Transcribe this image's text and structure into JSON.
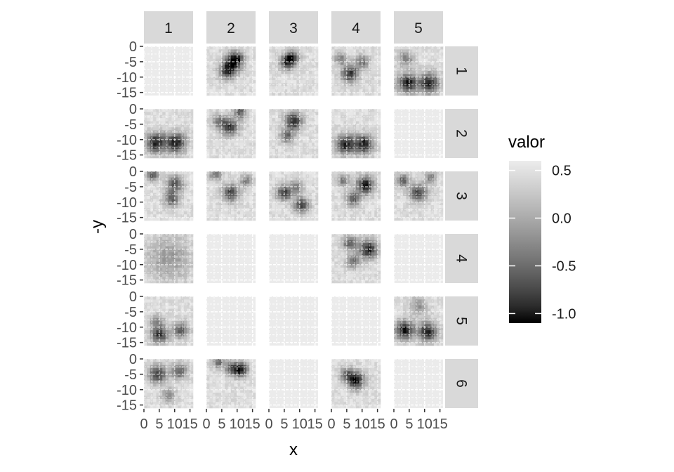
{
  "chart_data": {
    "type": "heatmap",
    "layout": "facet_grid",
    "col_facets": [
      "1",
      "2",
      "3",
      "4",
      "5"
    ],
    "row_facets": [
      "1",
      "2",
      "3",
      "4",
      "5",
      "6"
    ],
    "xlabel": "x",
    "ylabel": "-y",
    "x_ticks": [
      "0",
      "5",
      "10",
      "15"
    ],
    "y_ticks": [
      "0",
      "-5",
      "-10",
      "-15"
    ],
    "xlim": [
      0,
      16
    ],
    "ylim": [
      -16,
      0
    ],
    "grid_size": 16,
    "legend": {
      "title": "valor",
      "labels": [
        "0.5",
        "0.0",
        "-0.5",
        "-1.0"
      ],
      "range": [
        -1.1,
        0.6
      ],
      "placement": "right"
    },
    "panel_background": "#ebebeb",
    "colors": {
      "low": "#000000",
      "high": "#ececec",
      "strip": "#d9d9d9"
    },
    "panels": [
      {
        "row": "1",
        "col": "1",
        "empty": true
      },
      {
        "row": "1",
        "col": "2",
        "empty": false,
        "blobs": [
          {
            "x": 8.5,
            "y": -5.5,
            "v": -0.9,
            "r": 2.2
          },
          {
            "x": 6.5,
            "y": -8.5,
            "v": -0.6,
            "r": 1.8
          },
          {
            "x": 10,
            "y": -3.5,
            "v": -0.4,
            "r": 1.5
          }
        ]
      },
      {
        "row": "1",
        "col": "3",
        "empty": false,
        "blobs": [
          {
            "x": 6,
            "y": -5,
            "v": -0.9,
            "r": 1.8
          },
          {
            "x": 8,
            "y": -3.5,
            "v": -0.5,
            "r": 1.5
          }
        ]
      },
      {
        "row": "1",
        "col": "4",
        "empty": false,
        "blobs": [
          {
            "x": 6,
            "y": -9,
            "v": -0.9,
            "r": 2
          },
          {
            "x": 10,
            "y": -5,
            "v": -0.5,
            "r": 1.6
          },
          {
            "x": 3,
            "y": -4,
            "v": -0.4,
            "r": 1.4
          }
        ]
      },
      {
        "row": "1",
        "col": "5",
        "empty": false,
        "blobs": [
          {
            "x": 4.5,
            "y": -12,
            "v": -1,
            "r": 2.3
          },
          {
            "x": 11.5,
            "y": -12,
            "v": -1,
            "r": 2.3
          },
          {
            "x": 4,
            "y": -4,
            "v": -0.3,
            "r": 1.8
          }
        ]
      },
      {
        "row": "2",
        "col": "1",
        "empty": false,
        "blobs": [
          {
            "x": 4,
            "y": -11,
            "v": -1,
            "r": 2.3
          },
          {
            "x": 10.5,
            "y": -11,
            "v": -1,
            "r": 2.3
          }
        ]
      },
      {
        "row": "2",
        "col": "2",
        "empty": false,
        "blobs": [
          {
            "x": 7.5,
            "y": -6,
            "v": -0.9,
            "r": 2
          },
          {
            "x": 11,
            "y": -1,
            "v": -0.6,
            "r": 1.5
          },
          {
            "x": 4,
            "y": -4,
            "v": -0.3,
            "r": 1.6
          }
        ]
      },
      {
        "row": "2",
        "col": "3",
        "empty": false,
        "blobs": [
          {
            "x": 8,
            "y": -4,
            "v": -1,
            "r": 2
          },
          {
            "x": 6,
            "y": -9,
            "v": -0.5,
            "r": 1.6
          }
        ]
      },
      {
        "row": "2",
        "col": "4",
        "empty": false,
        "blobs": [
          {
            "x": 4.5,
            "y": -11.5,
            "v": -1,
            "r": 2.2
          },
          {
            "x": 10.5,
            "y": -11.5,
            "v": -1,
            "r": 2.2
          }
        ]
      },
      {
        "row": "2",
        "col": "5",
        "empty": true
      },
      {
        "row": "3",
        "col": "1",
        "empty": false,
        "blobs": [
          {
            "x": 10,
            "y": -4,
            "v": -0.8,
            "r": 1.8
          },
          {
            "x": 9,
            "y": -9,
            "v": -0.6,
            "r": 1.8
          },
          {
            "x": 3,
            "y": -1,
            "v": -0.7,
            "r": 1.4
          }
        ]
      },
      {
        "row": "3",
        "col": "2",
        "empty": false,
        "blobs": [
          {
            "x": 8,
            "y": -7,
            "v": -0.8,
            "r": 2
          },
          {
            "x": 3,
            "y": -1,
            "v": -0.5,
            "r": 1.4
          },
          {
            "x": 13,
            "y": -3,
            "v": -0.4,
            "r": 1.3
          }
        ]
      },
      {
        "row": "3",
        "col": "3",
        "empty": false,
        "blobs": [
          {
            "x": 5,
            "y": -7,
            "v": -0.8,
            "r": 1.8
          },
          {
            "x": 10.5,
            "y": -11,
            "v": -0.8,
            "r": 1.8
          },
          {
            "x": 9,
            "y": -5,
            "v": -0.4,
            "r": 1.5
          }
        ]
      },
      {
        "row": "3",
        "col": "4",
        "empty": false,
        "blobs": [
          {
            "x": 11,
            "y": -4.5,
            "v": -1.1,
            "r": 2
          },
          {
            "x": 7,
            "y": -9,
            "v": -0.6,
            "r": 1.7
          },
          {
            "x": 4,
            "y": -3,
            "v": -0.4,
            "r": 1.4
          }
        ]
      },
      {
        "row": "3",
        "col": "5",
        "empty": false,
        "blobs": [
          {
            "x": 8,
            "y": -7,
            "v": -0.8,
            "r": 2
          },
          {
            "x": 3,
            "y": -3,
            "v": -0.6,
            "r": 1.5
          },
          {
            "x": 12,
            "y": -2,
            "v": -0.4,
            "r": 1.4
          }
        ]
      },
      {
        "row": "4",
        "col": "1",
        "empty": false,
        "blobs": [
          {
            "x": 8,
            "y": -8,
            "v": -0.15,
            "r": 5
          }
        ]
      },
      {
        "row": "4",
        "col": "2",
        "empty": true
      },
      {
        "row": "4",
        "col": "3",
        "empty": true
      },
      {
        "row": "4",
        "col": "4",
        "empty": false,
        "blobs": [
          {
            "x": 12,
            "y": -5,
            "v": -1,
            "r": 2.2
          },
          {
            "x": 6,
            "y": -3,
            "v": -0.6,
            "r": 1.7
          },
          {
            "x": 7,
            "y": -9,
            "v": -0.5,
            "r": 1.5
          }
        ]
      },
      {
        "row": "4",
        "col": "5",
        "empty": true
      },
      {
        "row": "5",
        "col": "1",
        "empty": false,
        "blobs": [
          {
            "x": 5,
            "y": -12.5,
            "v": -0.9,
            "r": 2
          },
          {
            "x": 12,
            "y": -11,
            "v": -0.6,
            "r": 1.8
          },
          {
            "x": 4,
            "y": -8,
            "v": -0.3,
            "r": 1.6
          }
        ]
      },
      {
        "row": "5",
        "col": "2",
        "empty": true
      },
      {
        "row": "5",
        "col": "3",
        "empty": true
      },
      {
        "row": "5",
        "col": "4",
        "empty": true
      },
      {
        "row": "5",
        "col": "5",
        "empty": false,
        "blobs": [
          {
            "x": 3.5,
            "y": -11,
            "v": -1,
            "r": 2.2
          },
          {
            "x": 11,
            "y": -11.5,
            "v": -1,
            "r": 2.2
          },
          {
            "x": 8,
            "y": -3,
            "v": -0.2,
            "r": 2
          }
        ]
      },
      {
        "row": "6",
        "col": "1",
        "empty": false,
        "blobs": [
          {
            "x": 4.5,
            "y": -5,
            "v": -0.9,
            "r": 2
          },
          {
            "x": 11.5,
            "y": -4,
            "v": -0.6,
            "r": 1.8
          },
          {
            "x": 8,
            "y": -12,
            "v": -0.3,
            "r": 1.6
          }
        ]
      },
      {
        "row": "6",
        "col": "2",
        "empty": false,
        "blobs": [
          {
            "x": 11,
            "y": -3.5,
            "v": -1.1,
            "r": 1.7
          },
          {
            "x": 8,
            "y": -3,
            "v": -0.4,
            "r": 1.5
          },
          {
            "x": 4,
            "y": -1,
            "v": -0.5,
            "r": 1.4
          }
        ]
      },
      {
        "row": "6",
        "col": "3",
        "empty": true
      },
      {
        "row": "6",
        "col": "4",
        "empty": false,
        "blobs": [
          {
            "x": 8,
            "y": -7,
            "v": -1.1,
            "r": 2
          },
          {
            "x": 5,
            "y": -5,
            "v": -0.4,
            "r": 1.6
          }
        ]
      },
      {
        "row": "6",
        "col": "5",
        "empty": true
      }
    ]
  }
}
